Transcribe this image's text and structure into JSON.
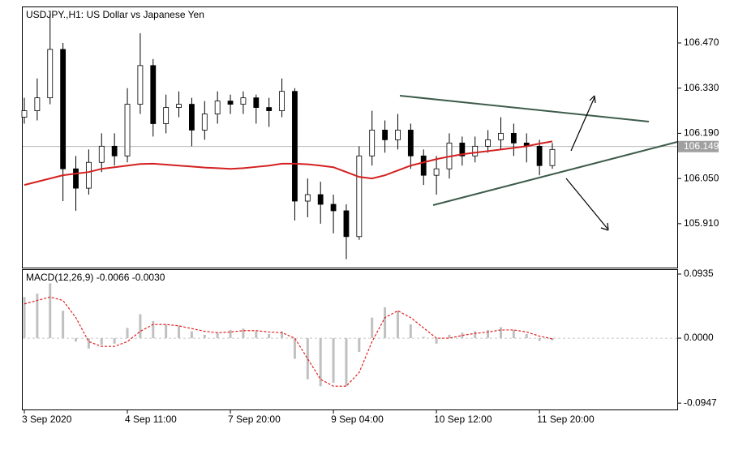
{
  "chart_data": [
    {
      "type": "candlestick",
      "title": "USDJPY.,H1:  US Dollar vs Japanese Yen",
      "categories": [
        "3 Sep 2020",
        null,
        null,
        null,
        null,
        null,
        null,
        null,
        "4 Sep 11:00",
        null,
        null,
        null,
        null,
        null,
        null,
        null,
        "7 Sep 20:00",
        null,
        null,
        null,
        null,
        null,
        null,
        null,
        "9 Sep 04:00",
        null,
        null,
        null,
        null,
        null,
        null,
        null,
        "10 Sep 12:00",
        null,
        null,
        null,
        null,
        null,
        null,
        null,
        "11 Sep 20:00",
        null
      ],
      "ohlc": {
        "open": [
          106.24,
          106.26,
          106.3,
          106.45,
          106.08,
          106.02,
          106.1,
          106.15,
          106.12,
          106.28,
          106.4,
          106.22,
          106.27,
          106.28,
          106.2,
          106.25,
          106.29,
          106.28,
          106.3,
          106.27,
          106.26,
          106.32,
          105.98,
          106.0,
          105.97,
          105.95,
          105.87,
          106.12,
          106.2,
          106.17,
          106.2,
          106.12,
          106.06,
          106.08,
          106.16,
          106.12,
          106.15,
          106.17,
          106.19,
          106.16,
          106.15,
          106.09
        ],
        "high": [
          106.3,
          106.36,
          106.56,
          106.47,
          106.12,
          106.14,
          106.19,
          106.19,
          106.33,
          106.5,
          106.42,
          106.31,
          106.32,
          106.3,
          106.29,
          106.32,
          106.31,
          106.32,
          106.31,
          106.3,
          106.36,
          106.33,
          106.05,
          106.04,
          106.0,
          105.97,
          106.15,
          106.26,
          106.23,
          106.25,
          106.22,
          106.14,
          106.12,
          106.19,
          106.18,
          106.18,
          106.2,
          106.24,
          106.22,
          106.19,
          106.17,
          106.16
        ],
        "low": [
          106.22,
          106.23,
          106.28,
          105.98,
          105.95,
          106.0,
          106.07,
          106.09,
          106.1,
          106.25,
          106.18,
          106.19,
          106.24,
          106.15,
          106.17,
          106.22,
          106.25,
          106.25,
          106.22,
          106.21,
          106.24,
          105.92,
          105.93,
          105.91,
          105.88,
          105.8,
          105.86,
          106.09,
          106.13,
          106.14,
          106.08,
          106.03,
          106.0,
          106.05,
          106.09,
          106.1,
          106.13,
          106.14,
          106.12,
          106.1,
          106.06,
          106.08
        ],
        "close": [
          106.26,
          106.3,
          106.45,
          106.08,
          106.02,
          106.1,
          106.15,
          106.12,
          106.28,
          106.4,
          106.22,
          106.27,
          106.28,
          106.2,
          106.25,
          106.29,
          106.28,
          106.3,
          106.27,
          106.26,
          106.32,
          105.98,
          106.0,
          105.97,
          105.95,
          105.87,
          106.12,
          106.2,
          106.17,
          106.2,
          106.12,
          106.06,
          106.08,
          106.16,
          106.12,
          106.15,
          106.17,
          106.19,
          106.16,
          106.15,
          106.09,
          106.14
        ]
      },
      "ma": {
        "color": "#d42020",
        "values": [
          106.03,
          106.04,
          106.05,
          106.06,
          106.065,
          106.07,
          106.08,
          106.085,
          106.09,
          106.095,
          106.096,
          106.093,
          106.09,
          106.087,
          106.084,
          106.082,
          106.08,
          106.082,
          106.086,
          106.09,
          106.096,
          106.096,
          106.094,
          106.09,
          106.085,
          106.07,
          106.055,
          106.05,
          106.06,
          106.075,
          106.09,
          106.1,
          106.11,
          106.118,
          106.125,
          106.13,
          106.135,
          106.14,
          106.145,
          106.15,
          106.158,
          106.165
        ]
      },
      "current_price": {
        "value": 106.149,
        "color": "#a0a0a0"
      },
      "ylim": [
        105.774,
        106.583
      ],
      "yticks": [
        {
          "value": 106.47,
          "label": "106.470"
        },
        {
          "value": 106.33,
          "label": "106.330"
        },
        {
          "value": 106.19,
          "label": "106.190"
        },
        {
          "value": 106.05,
          "label": "106.050"
        },
        {
          "value": 105.91,
          "label": "105.910"
        }
      ]
    },
    {
      "type": "macd",
      "label": "MACD(12,26,9) -0.0066 -0.0030",
      "histogram": {
        "color": "#c0c0c0",
        "values": [
          0.06,
          0.065,
          0.08,
          0.04,
          -0.005,
          -0.015,
          -0.01,
          -0.008,
          0.015,
          0.035,
          0.025,
          0.02,
          0.018,
          0.01,
          0.005,
          0.008,
          0.012,
          0.014,
          0.01,
          0.006,
          0.01,
          -0.03,
          -0.06,
          -0.07,
          -0.065,
          -0.07,
          -0.02,
          0.03,
          0.045,
          0.04,
          0.02,
          0.002,
          -0.008,
          0.005,
          0.008,
          0.01,
          0.012,
          0.016,
          0.012,
          0.006,
          -0.004,
          -0.003
        ]
      },
      "signal": {
        "color": "#e02020",
        "values": [
          0.05,
          0.055,
          0.06,
          0.055,
          0.03,
          -0.005,
          -0.012,
          -0.012,
          -0.005,
          0.01,
          0.02,
          0.02,
          0.018,
          0.014,
          0.01,
          0.008,
          0.009,
          0.011,
          0.011,
          0.009,
          0.008,
          0,
          -0.03,
          -0.06,
          -0.07,
          -0.07,
          -0.05,
          -0.005,
          0.03,
          0.04,
          0.03,
          0.015,
          0,
          0,
          0.004,
          0.007,
          0.009,
          0.012,
          0.012,
          0.009,
          0.003,
          -0.001
        ]
      },
      "ylim": [
        -0.104,
        0.1006
      ],
      "yticks": [
        0.0935,
        {
          "value": 0,
          "label": "0.0000"
        },
        -0.0947
      ]
    }
  ]
}
